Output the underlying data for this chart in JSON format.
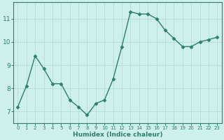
{
  "x": [
    0,
    1,
    2,
    3,
    4,
    5,
    6,
    7,
    8,
    9,
    10,
    11,
    12,
    13,
    14,
    15,
    16,
    17,
    18,
    19,
    20,
    21,
    22,
    23
  ],
  "y": [
    7.2,
    8.1,
    9.4,
    8.85,
    8.2,
    8.2,
    7.5,
    7.2,
    6.85,
    7.35,
    7.5,
    8.4,
    9.8,
    11.3,
    11.2,
    11.2,
    11.0,
    10.5,
    10.15,
    9.8,
    9.8,
    10.0,
    10.1,
    10.2
  ],
  "xlabel": "Humidex (Indice chaleur)",
  "line_color": "#2e7d6e",
  "bg_color": "#cef0ec",
  "grid_color": "#b8dbd6",
  "yticks": [
    7,
    8,
    9,
    10,
    11
  ],
  "ylim": [
    6.5,
    11.7
  ],
  "xlim": [
    -0.5,
    23.5
  ]
}
